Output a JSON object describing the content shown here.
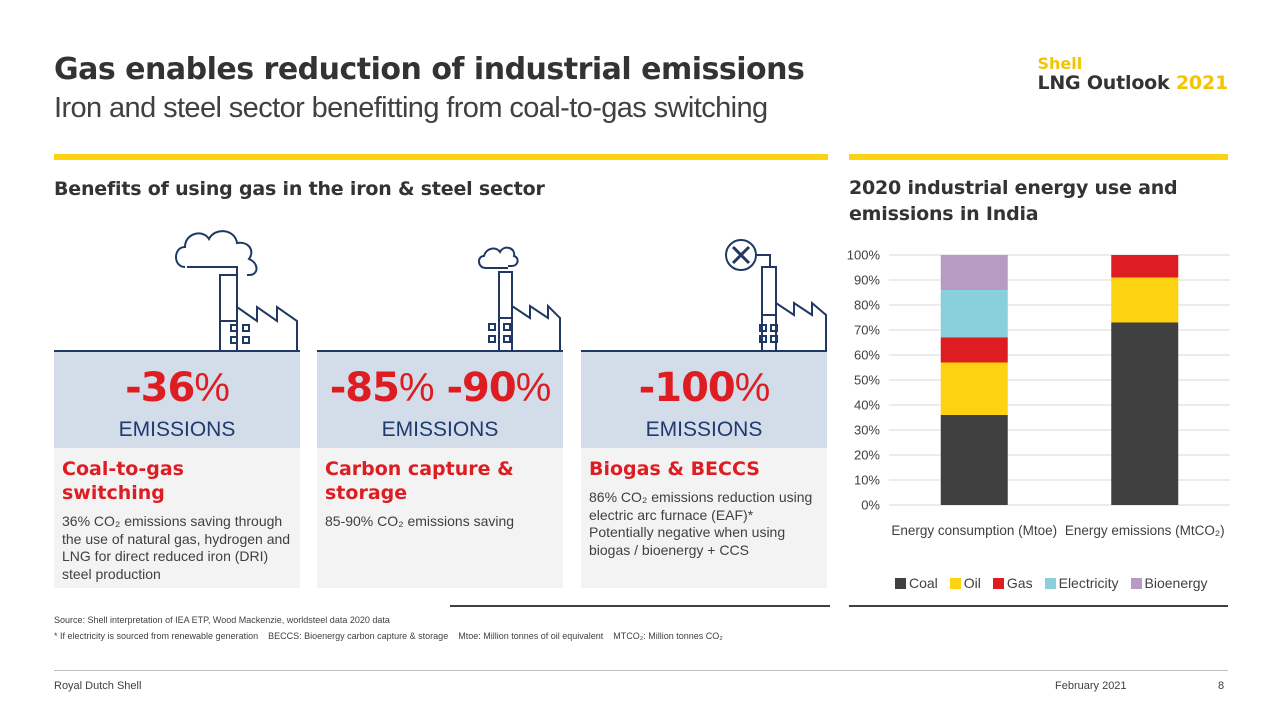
{
  "header": {
    "title": "Gas enables reduction of industrial emissions",
    "subtitle": "Iron and steel sector benefitting from coal-to-gas switching",
    "brand_shell": "Shell",
    "brand_line": "LNG Outlook",
    "brand_year": "2021"
  },
  "left_section": {
    "heading": "Benefits of using gas in the iron & steel sector",
    "cards": [
      {
        "value": "-36",
        "value_suffix": "%",
        "label": "EMISSIONS",
        "heading": "Coal-to-gas switching",
        "body": "36% CO₂ emissions saving through the use of natural gas, hydrogen and LNG for direct reduced iron (DRI) steel production"
      },
      {
        "value": "-85",
        "value_mid": "% -90",
        "value_suffix": "%",
        "label": "EMISSIONS",
        "heading": "Carbon capture & storage",
        "body": "85-90% CO₂ emissions saving"
      },
      {
        "value": "-100",
        "value_suffix": "%",
        "label": "EMISSIONS",
        "heading": "Biogas & BECCS",
        "body": "86% CO₂ emissions reduction using electric arc furnace (EAF)* Potentially negative when using biogas / bioenergy + CCS"
      }
    ],
    "icons": [
      "factory-cloud-large-icon",
      "factory-cloud-small-icon",
      "factory-cross-icon"
    ]
  },
  "right_section": {
    "heading_line1": "2020 industrial energy use and",
    "heading_line2": "emissions in India"
  },
  "chart_data": {
    "type": "bar",
    "stacked": true,
    "title": "2020 industrial energy use and emissions in India",
    "categories": [
      "Energy consumption (Mtoe)",
      "Energy emissions (MtCO₂)"
    ],
    "series": [
      {
        "name": "Coal",
        "color": "#404040",
        "values": [
          36,
          73
        ]
      },
      {
        "name": "Oil",
        "color": "#fdd211",
        "values": [
          21,
          18
        ]
      },
      {
        "name": "Gas",
        "color": "#dd1d21",
        "values": [
          10,
          9
        ]
      },
      {
        "name": "Electricity",
        "color": "#89cfdc",
        "values": [
          19,
          0
        ]
      },
      {
        "name": "Bioenergy",
        "color": "#b89bc2",
        "values": [
          14,
          0
        ]
      }
    ],
    "ylim": [
      0,
      100
    ],
    "yticks": [
      "0%",
      "10%",
      "20%",
      "30%",
      "40%",
      "50%",
      "60%",
      "70%",
      "80%",
      "90%",
      "100%"
    ],
    "grid": true,
    "legend_position": "bottom"
  },
  "footer": {
    "source": "Source: Shell interpretation of IEA ETP, Wood Mackenzie, worldsteel data 2020 data",
    "notes": "* If electricity is sourced from renewable generation    BECCS: Bioenergy carbon capture & storage    Mtoe: Million tonnes of oil equivalent    MTCO₂: Million tonnes CO₂",
    "company": "Royal Dutch Shell",
    "date": "February 2021",
    "page": "8"
  }
}
